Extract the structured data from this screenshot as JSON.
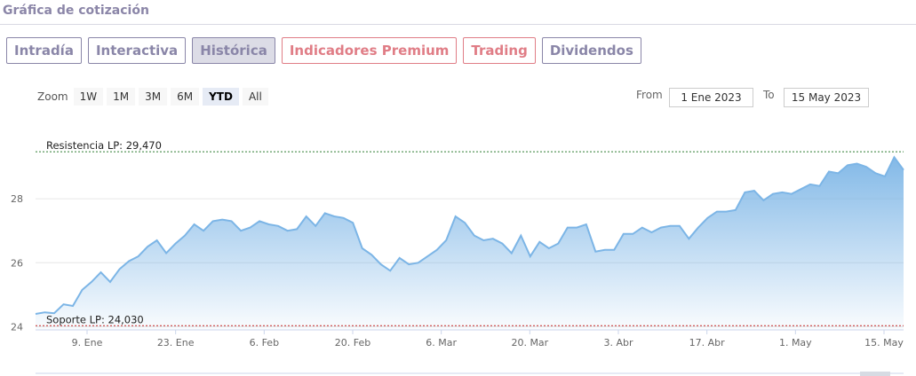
{
  "header": {
    "title": "Gráfica de cotización"
  },
  "tabs": [
    {
      "label": "Intradía",
      "active": false,
      "premium": false
    },
    {
      "label": "Interactiva",
      "active": false,
      "premium": false
    },
    {
      "label": "Histórica",
      "active": true,
      "premium": false
    },
    {
      "label": "Indicadores Premium",
      "active": false,
      "premium": true
    },
    {
      "label": "Trading",
      "active": false,
      "premium": true
    },
    {
      "label": "Dividendos",
      "active": false,
      "premium": false
    }
  ],
  "zoom": {
    "label": "Zoom",
    "options": [
      "1W",
      "1M",
      "3M",
      "6M",
      "YTD",
      "All"
    ],
    "selected": "YTD"
  },
  "range": {
    "from_label": "From",
    "from_value": "1 Ene 2023",
    "to_label": "To",
    "to_value": "15 May 2023"
  },
  "colors": {
    "accent": "#8a86a8",
    "premium": "#e07d86",
    "line": "#7cb5e6",
    "fill": "#7cb5e6"
  },
  "chart_data": {
    "type": "area",
    "ylim": [
      23.9,
      30.5
    ],
    "yticks": [
      24,
      26,
      28
    ],
    "ytick_labels": [
      "24",
      "26",
      "28"
    ],
    "xticks": [
      "9. Ene",
      "23. Ene",
      "6. Feb",
      "20. Feb",
      "6. Mar",
      "20. Mar",
      "3. Abr",
      "17. Abr",
      "1. May",
      "15. May"
    ],
    "grid": true,
    "annotations": [
      {
        "text": "Resistencia LP: 29,470",
        "value": 29.47,
        "color": "#2e7d32"
      },
      {
        "text": "Soporte LP: 24,030",
        "value": 24.03,
        "color": "#c62828"
      }
    ],
    "series": [
      {
        "values": [
          24.4,
          24.45,
          24.42,
          24.7,
          24.65,
          25.15,
          25.4,
          25.7,
          25.4,
          25.8,
          26.05,
          26.2,
          26.5,
          26.7,
          26.3,
          26.6,
          26.85,
          27.2,
          27.0,
          27.3,
          27.35,
          27.3,
          27.0,
          27.1,
          27.3,
          27.2,
          27.15,
          27.0,
          27.05,
          27.45,
          27.15,
          27.55,
          27.45,
          27.4,
          27.25,
          26.45,
          26.25,
          25.95,
          25.75,
          26.15,
          25.95,
          26.0,
          26.2,
          26.4,
          26.7,
          27.45,
          27.25,
          26.85,
          26.7,
          26.75,
          26.6,
          26.3,
          26.85,
          26.2,
          26.65,
          26.45,
          26.6,
          27.1,
          27.1,
          27.2,
          26.35,
          26.4,
          26.4,
          26.9,
          26.9,
          27.1,
          26.95,
          27.1,
          27.15,
          27.15,
          26.75,
          27.1,
          27.4,
          27.6,
          27.6,
          27.65,
          28.2,
          28.25,
          27.95,
          28.15,
          28.2,
          28.15,
          28.3,
          28.45,
          28.4,
          28.85,
          28.8,
          29.05,
          29.1,
          29.0,
          28.8,
          28.7,
          29.3,
          28.9
        ]
      }
    ]
  }
}
